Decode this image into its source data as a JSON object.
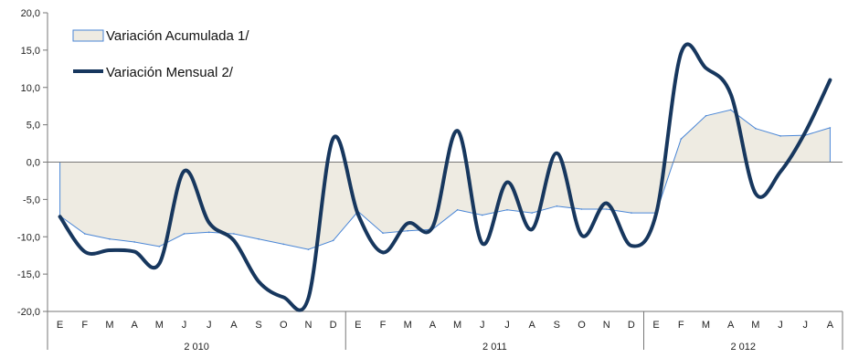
{
  "chart_data": {
    "type": "area",
    "categories": [
      "E",
      "F",
      "M",
      "A",
      "M",
      "J",
      "J",
      "A",
      "S",
      "O",
      "N",
      "D",
      "E",
      "F",
      "M",
      "A",
      "M",
      "J",
      "J",
      "A",
      "S",
      "O",
      "N",
      "D",
      "E",
      "F",
      "M",
      "A",
      "M",
      "J",
      "J",
      "A"
    ],
    "year_groups": [
      {
        "label": "2 010",
        "count": 12
      },
      {
        "label": "2 011",
        "count": 12
      },
      {
        "label": "2 012",
        "count": 8
      }
    ],
    "series": [
      {
        "name": "Variación Acumulada 1/",
        "kind": "area",
        "color": "#4a86d6",
        "fill": "#eeebe2",
        "values": [
          -7.2,
          -9.6,
          -10.3,
          -10.7,
          -11.3,
          -9.6,
          -9.4,
          -9.6,
          -10.3,
          -11.0,
          -11.7,
          -10.5,
          -6.6,
          -9.5,
          -9.2,
          -9.0,
          -6.4,
          -7.1,
          -6.4,
          -6.8,
          -5.9,
          -6.3,
          -6.3,
          -6.8,
          -6.8,
          3.1,
          6.2,
          7.0,
          4.5,
          3.5,
          3.6,
          4.6
        ]
      },
      {
        "name": "Variación Mensual 2/",
        "kind": "line",
        "color": "#17375e",
        "values": [
          -7.3,
          -12.0,
          -11.8,
          -12.0,
          -13.6,
          -1.2,
          -8.1,
          -10.5,
          -16.0,
          -18.1,
          -18.2,
          3.2,
          -7.0,
          -12.1,
          -8.2,
          -8.7,
          4.2,
          -10.9,
          -2.7,
          -9.0,
          1.2,
          -9.8,
          -5.5,
          -11.2,
          -6.9,
          14.6,
          12.6,
          9.1,
          -4.2,
          -1.3,
          4.0,
          11.0
        ]
      }
    ],
    "y_ticks": [
      "20,0",
      "15,0",
      "10,0",
      "5,0",
      "0,0",
      "-5,0",
      "-10,0",
      "-15,0",
      "-20,0"
    ],
    "ylim": [
      -20,
      20
    ],
    "legend_position": "top-left",
    "grid": false
  }
}
